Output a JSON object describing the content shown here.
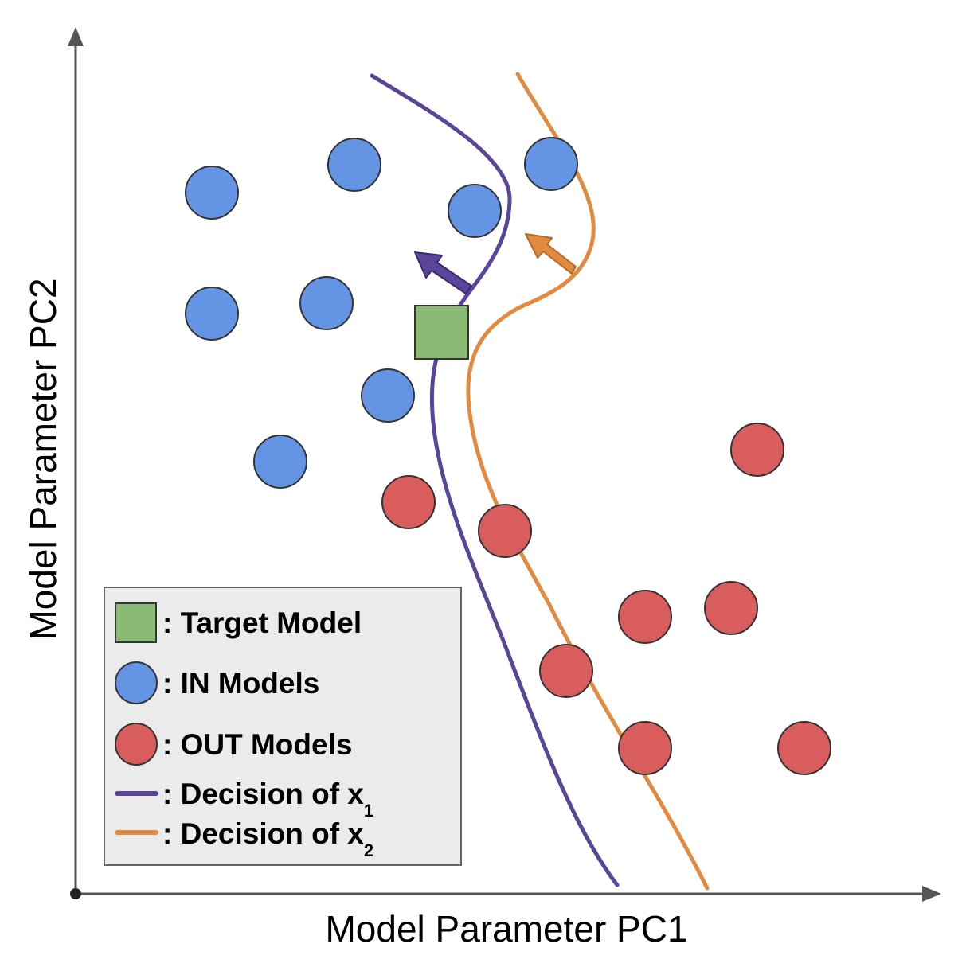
{
  "axes": {
    "x_label": "Model Parameter PC1",
    "y_label": "Model Parameter PC2"
  },
  "legend": {
    "target_label": ": Target Model",
    "in_label": ": IN Models",
    "out_label": ": OUT Models",
    "decision1_label": ": Decision of x",
    "decision1_sub": "1",
    "decision2_label": ": Decision of x",
    "decision2_sub": "2"
  },
  "colors": {
    "in_model": "#6495e4",
    "out_model": "#da5d5d",
    "target_model": "#8aba74",
    "decision_x1": "#5a4598",
    "decision_x2": "#e28a3f",
    "legend_bg": "#ebebeb",
    "axis": "#555555"
  },
  "counts": {
    "in_models": 9,
    "out_models": 9
  }
}
